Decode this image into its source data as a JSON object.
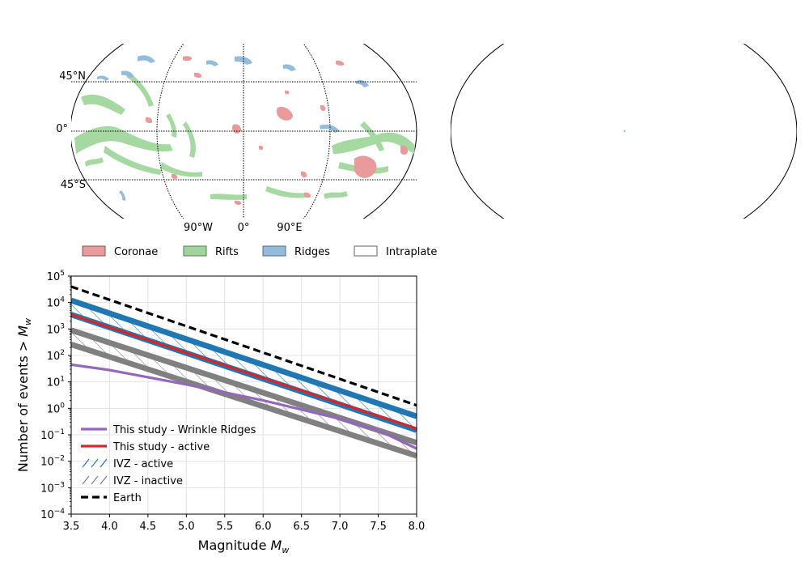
{
  "maps": {
    "left": {
      "lat_labels": [
        "45°N",
        "0°",
        "45°S"
      ],
      "lon_labels": [
        "90°W",
        "0°",
        "90°E"
      ]
    }
  },
  "map_legend": [
    {
      "label": "Coronae",
      "color": "#e99a9a"
    },
    {
      "label": "Rifts",
      "color": "#9fd49b"
    },
    {
      "label": "Ridges",
      "color": "#93bcdc"
    },
    {
      "label": "Intraplate",
      "color": "#ffffff"
    }
  ],
  "chart_data": {
    "type": "line",
    "xlabel_main": "Magnitude ",
    "xlabel_var": "M",
    "xlabel_sub": "w",
    "ylabel_main": "Number of events > ",
    "ylabel_var": "M",
    "ylabel_sub": "w",
    "xlim": [
      3.5,
      8.0
    ],
    "ylim": [
      0.0001,
      100000
    ],
    "yscale": "log",
    "grid": true,
    "legend_position": "lower-left",
    "x_ticks": [
      "3.5",
      "4.0",
      "4.5",
      "5.0",
      "5.5",
      "6.0",
      "6.5",
      "7.0",
      "7.5",
      "8.0"
    ],
    "y_ticks": [
      {
        "base": "10",
        "exp": "5",
        "value": 100000
      },
      {
        "base": "10",
        "exp": "4",
        "value": 10000
      },
      {
        "base": "10",
        "exp": "3",
        "value": 1000
      },
      {
        "base": "10",
        "exp": "2",
        "value": 100
      },
      {
        "base": "10",
        "exp": "1",
        "value": 10
      },
      {
        "base": "10",
        "exp": "0",
        "value": 1
      },
      {
        "base": "10",
        "exp": "−1",
        "value": 0.1
      },
      {
        "base": "10",
        "exp": "−2",
        "value": 0.01
      },
      {
        "base": "10",
        "exp": "−3",
        "value": 0.001
      },
      {
        "base": "10",
        "exp": "−4",
        "value": 0.0001
      }
    ],
    "bands": [
      {
        "name": "IVZ - active",
        "color": "#1f77b4",
        "upper": {
          "x": [
            3.5,
            8.0
          ],
          "y": [
            12000,
            0.5
          ]
        },
        "lower": {
          "x": [
            3.5,
            8.0
          ],
          "y": [
            3500,
            0.15
          ]
        }
      },
      {
        "name": "IVZ - inactive",
        "color": "#808080",
        "upper": {
          "x": [
            3.5,
            8.0
          ],
          "y": [
            900,
            0.05
          ]
        },
        "lower": {
          "x": [
            3.5,
            8.0
          ],
          "y": [
            260,
            0.016
          ]
        }
      }
    ],
    "series": [
      {
        "name": "This study - Wrinkle Ridges",
        "color": "#9467bd",
        "dash": "",
        "x": [
          3.5,
          4.0,
          4.5,
          5.0,
          5.5,
          6.0,
          6.5,
          7.0,
          7.5,
          8.0
        ],
        "y": [
          45,
          28,
          15,
          8,
          4,
          2,
          0.9,
          0.4,
          0.15,
          0.03
        ]
      },
      {
        "name": "This study - active",
        "color": "#d62728",
        "dash": "",
        "x": [
          3.5,
          8.0
        ],
        "y": [
          3500,
          0.17
        ]
      },
      {
        "name": "Earth",
        "color": "#000000",
        "dash": "9,5",
        "x": [
          3.5,
          8.0
        ],
        "y": [
          40000,
          1.3
        ]
      }
    ],
    "legend": [
      {
        "label": "This study - Wrinkle Ridges",
        "kind": "line",
        "color": "#9467bd"
      },
      {
        "label": "This study - active",
        "kind": "line",
        "color": "#d62728"
      },
      {
        "label": "IVZ - active",
        "kind": "hatch",
        "color": "#1f77b4"
      },
      {
        "label": "IVZ - inactive",
        "kind": "hatch",
        "color": "#808080"
      },
      {
        "label": "Earth",
        "kind": "dash",
        "color": "#000000"
      }
    ]
  }
}
